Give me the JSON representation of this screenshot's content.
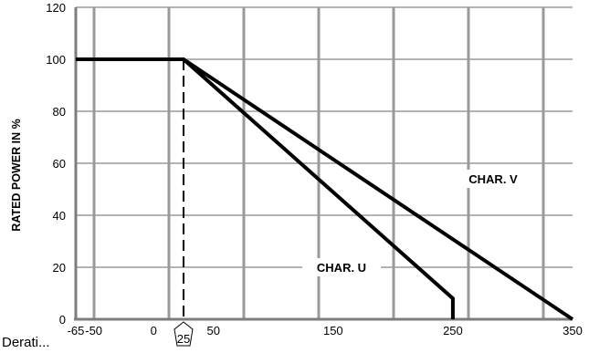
{
  "chart_data": {
    "type": "line",
    "ylabel": "RATED POWER IN %",
    "xlabel": "",
    "x_ticks": [
      -65,
      -50,
      0,
      50,
      150,
      250,
      350
    ],
    "y_ticks": [
      0,
      20,
      40,
      60,
      80,
      100,
      120
    ],
    "xlim": [
      -65,
      350
    ],
    "ylim": [
      0,
      120
    ],
    "grid": true,
    "reference_line": {
      "x": 25,
      "label": "25",
      "style": "dashed"
    },
    "series": [
      {
        "name": "CHAR. U",
        "x": [
          -65,
          25,
          250,
          250
        ],
        "y": [
          100,
          100,
          8,
          0
        ]
      },
      {
        "name": "CHAR. V",
        "x": [
          -65,
          25,
          350
        ],
        "y": [
          100,
          100,
          0
        ]
      }
    ]
  },
  "footer": {
    "text": "Derati..."
  }
}
